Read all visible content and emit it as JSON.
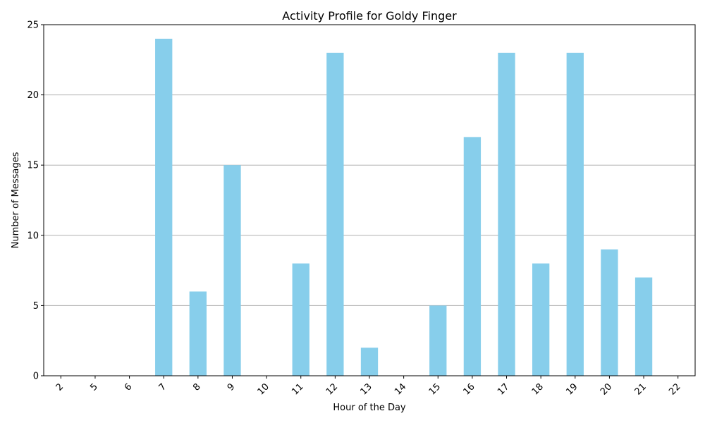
{
  "colors": {
    "bar": "#87CEEB",
    "grid": "#b0b0b0",
    "axis": "#000000",
    "background": "#ffffff"
  },
  "chart_data": {
    "type": "bar",
    "title": "Activity Profile for Goldy Finger",
    "xlabel": "Hour of the Day",
    "ylabel": "Number of Messages",
    "categories": [
      "2",
      "5",
      "6",
      "7",
      "8",
      "9",
      "10",
      "11",
      "12",
      "13",
      "14",
      "15",
      "16",
      "17",
      "18",
      "19",
      "20",
      "21",
      "22"
    ],
    "values": [
      0,
      0,
      0,
      24,
      6,
      15,
      0,
      8,
      23,
      2,
      0,
      5,
      17,
      23,
      8,
      23,
      9,
      7,
      0
    ],
    "ylim": [
      0,
      25
    ],
    "yticks": [
      0,
      5,
      10,
      15,
      20,
      25
    ],
    "grid": "y-axis only",
    "legend": "none"
  }
}
